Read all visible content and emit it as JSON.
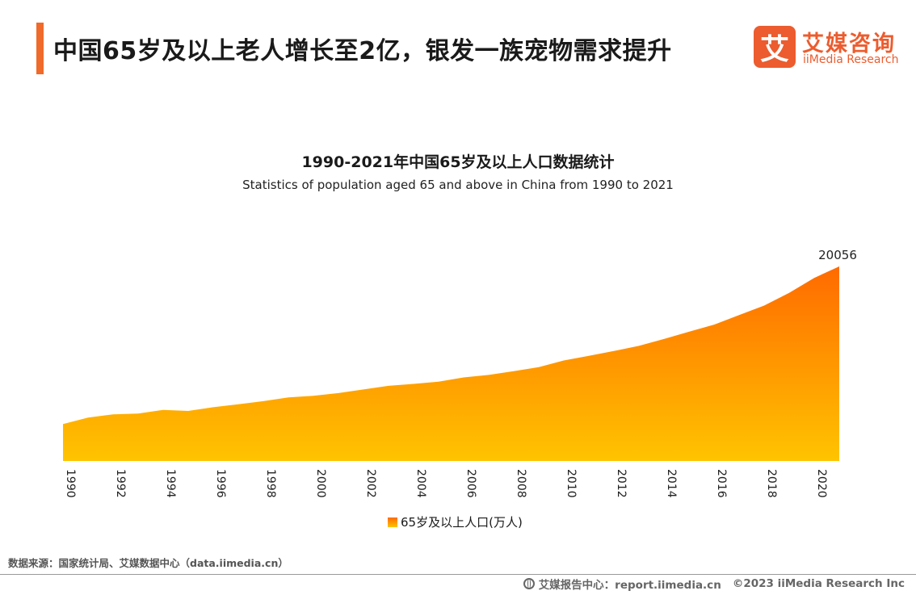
{
  "header": {
    "title": "中国65岁及以上老人增长至2亿，银发一族宠物需求提升",
    "accent_color": "#f06a2b"
  },
  "logo": {
    "mark": "艾",
    "name_cn": "艾媒咨询",
    "name_en": "iiMedia Research",
    "color": "#ec5c2e"
  },
  "chart_data": {
    "type": "area",
    "title": "1990-2021年中国65岁及以上人口数据统计",
    "subtitle": "Statistics of population aged 65 and above in China from 1990 to 2021",
    "x": [
      1990,
      1991,
      1992,
      1993,
      1994,
      1995,
      1996,
      1997,
      1998,
      1999,
      2000,
      2001,
      2002,
      2003,
      2004,
      2005,
      2006,
      2007,
      2008,
      2009,
      2010,
      2011,
      2012,
      2013,
      2014,
      2015,
      2016,
      2017,
      2018,
      2019,
      2020,
      2021
    ],
    "x_tick_labels": [
      "1990",
      "1992",
      "1994",
      "1996",
      "1998",
      "2000",
      "2002",
      "2004",
      "2006",
      "2008",
      "2010",
      "2012",
      "2014",
      "2016",
      "2018",
      "2020"
    ],
    "series": [
      {
        "name": "65岁及以上人口(万人)",
        "values": [
          6368,
          6938,
          7218,
          7289,
          7603,
          7510,
          7833,
          8085,
          8359,
          8679,
          8821,
          9062,
          9377,
          9692,
          9857,
          10055,
          10419,
          10636,
          10956,
          11307,
          11894,
          12288,
          12714,
          13161,
          13755,
          14386,
          15003,
          15831,
          16658,
          17767,
          19064,
          20056
        ]
      }
    ],
    "data_labels": [
      {
        "x": 2021,
        "label": "20056"
      }
    ],
    "ylim": [
      0,
      20056
    ],
    "grid": false,
    "legend_position": "bottom-center",
    "gradient_colors": {
      "top": "#ff6a00",
      "bottom": "#ffc400"
    }
  },
  "source": "数据来源：国家统计局、艾媒数据中心（data.iimedia.cn）",
  "footer": {
    "report_center": "艾媒报告中心：report.iimedia.cn",
    "copyright": "©2023  iiMedia Research Inc"
  }
}
